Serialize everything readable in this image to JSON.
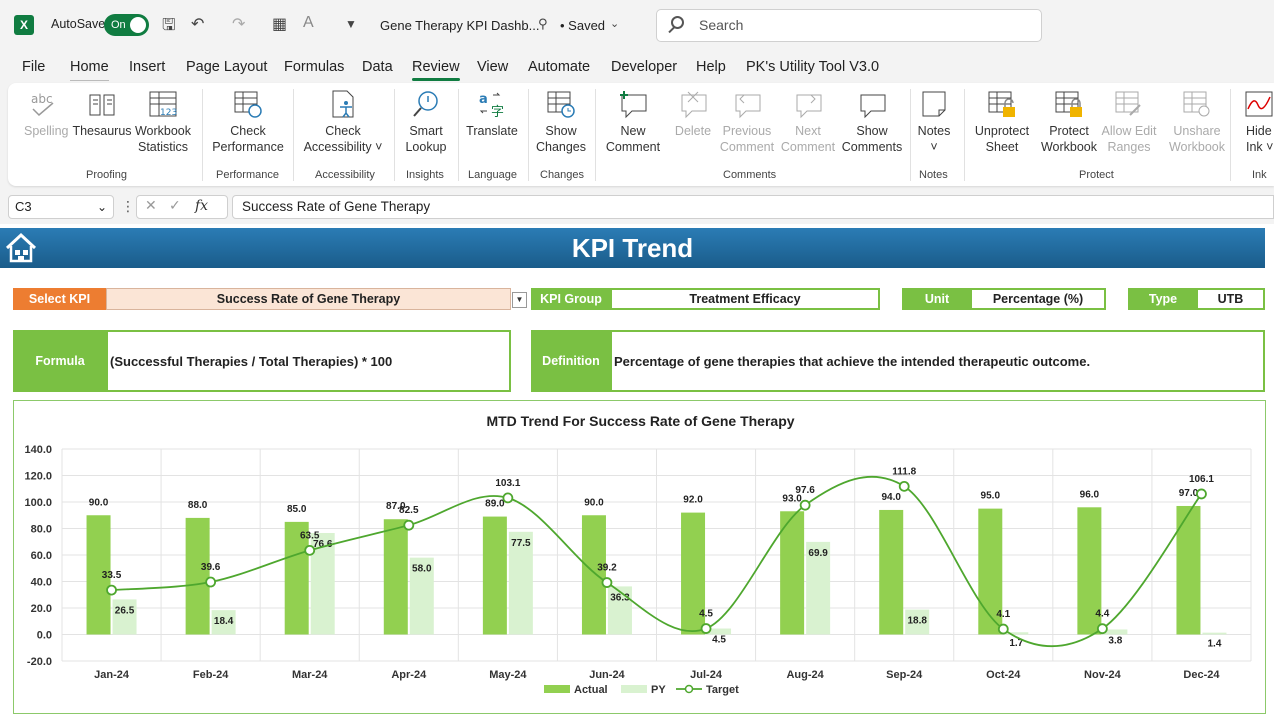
{
  "titlebar": {
    "autosave_label": "AutoSave",
    "autosave_state": "On",
    "doc_title": "Gene Therapy KPI Dashb...",
    "saved": "• Saved",
    "search_placeholder": "Search"
  },
  "menu": [
    "File",
    "Home",
    "Insert",
    "Page Layout",
    "Formulas",
    "Data",
    "Review",
    "View",
    "Automate",
    "Developer",
    "Help",
    "PK's Utility Tool V3.0"
  ],
  "ribbon": {
    "buttons": {
      "spelling": "Spelling",
      "thesaurus": "Thesaurus",
      "workbook_stats_1": "Workbook",
      "workbook_stats_2": "Statistics",
      "check_perf_1": "Check",
      "check_perf_2": "Performance",
      "check_acc_1": "Check",
      "check_acc_2": "Accessibility ˅",
      "smart_1": "Smart",
      "smart_2": "Lookup",
      "translate": "Translate",
      "show_changes_1": "Show",
      "show_changes_2": "Changes",
      "new_comment_1": "New",
      "new_comment_2": "Comment",
      "delete": "Delete",
      "prev_1": "Previous",
      "prev_2": "Comment",
      "next_1": "Next",
      "next_2": "Comment",
      "show_comments_1": "Show",
      "show_comments_2": "Comments",
      "notes": "Notes",
      "notes_caret": "˅",
      "unprotect_1": "Unprotect",
      "unprotect_2": "Sheet",
      "protect_1": "Protect",
      "protect_2": "Workbook",
      "allow_edit_1": "Allow Edit",
      "allow_edit_2": "Ranges",
      "unshare_1": "Unshare",
      "unshare_2": "Workbook",
      "hide_ink_1": "Hide",
      "hide_ink_2": "Ink ˅"
    },
    "groups": [
      "Proofing",
      "Performance",
      "Accessibility",
      "Insights",
      "Language",
      "Changes",
      "Comments",
      "Notes",
      "Protect",
      "Ink"
    ]
  },
  "formula_bar": {
    "cell": "C3",
    "fx": "fx",
    "formula": "Success Rate of Gene Therapy"
  },
  "dashboard": {
    "banner_title": "KPI Trend",
    "select_kpi_label": "Select KPI",
    "select_kpi_value": "Success Rate of Gene Therapy",
    "kpi_group_label": "KPI Group",
    "kpi_group_value": "Treatment Efficacy",
    "unit_label": "Unit",
    "unit_value": "Percentage (%)",
    "type_label": "Type",
    "type_value": "UTB",
    "formula_label": "Formula",
    "formula_value": "(Successful Therapies / Total Therapies) * 100",
    "definition_label": "Definition",
    "definition_value": "Percentage of gene therapies that achieve the intended therapeutic outcome.",
    "colors": {
      "orange": "#ed7d31",
      "green": "#7ac043",
      "select_bg": "#fbe5d6"
    }
  },
  "chart_data": {
    "type": "bar",
    "title": "MTD Trend For Success Rate of Gene Therapy",
    "categories": [
      "Jan-24",
      "Feb-24",
      "Mar-24",
      "Apr-24",
      "May-24",
      "Jun-24",
      "Jul-24",
      "Aug-24",
      "Sep-24",
      "Oct-24",
      "Nov-24",
      "Dec-24"
    ],
    "series": [
      {
        "name": "Actual",
        "kind": "bar",
        "color": "#92d050",
        "values": [
          90.0,
          88.0,
          85.0,
          87.0,
          89.0,
          90.0,
          92.0,
          93.0,
          94.0,
          95.0,
          96.0,
          97.0
        ]
      },
      {
        "name": "PY",
        "kind": "bar",
        "color": "#d9f2d0",
        "values": [
          26.5,
          18.4,
          76.6,
          58.0,
          77.5,
          36.3,
          4.5,
          69.9,
          18.8,
          1.7,
          3.8,
          1.4
        ]
      },
      {
        "name": "Target",
        "kind": "smooth-line",
        "color": "#4ea72e",
        "values": [
          33.5,
          39.6,
          63.5,
          82.5,
          103.1,
          39.2,
          4.5,
          97.6,
          111.8,
          4.1,
          4.4,
          106.1
        ]
      }
    ],
    "yticks": [
      "140.0",
      "120.0",
      "100.0",
      "80.0",
      "60.0",
      "40.0",
      "20.0",
      "0.0",
      "-20.0"
    ],
    "ylim": [
      -20,
      140
    ],
    "grid": true,
    "legend": "bottom"
  }
}
